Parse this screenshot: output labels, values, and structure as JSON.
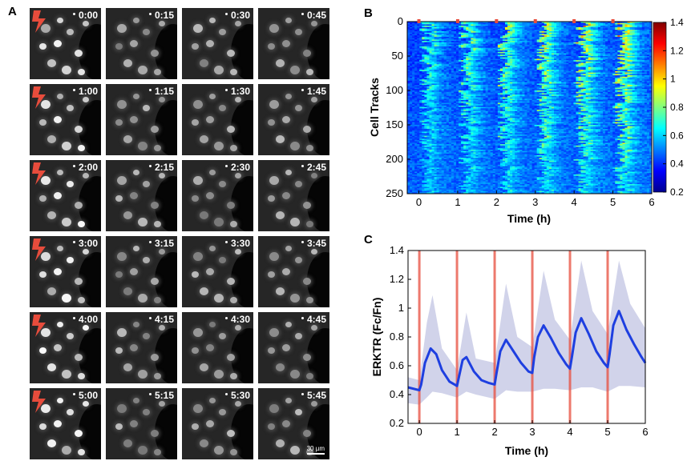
{
  "panels": {
    "a": "A",
    "b": "B",
    "c": "C"
  },
  "timepoints": [
    "0:00",
    "0:15",
    "0:30",
    "0:45",
    "1:00",
    "1:15",
    "1:30",
    "1:45",
    "2:00",
    "2:15",
    "2:30",
    "2:45",
    "3:00",
    "3:15",
    "3:30",
    "3:45",
    "4:00",
    "4:15",
    "4:30",
    "4:45",
    "5:00",
    "5:15",
    "5:30",
    "5:45"
  ],
  "scale_bar": "30 µm",
  "colors": {
    "stim": "#e74c3c",
    "line": "#1e3fe0",
    "band": "#c9cbe6"
  },
  "chart_data": [
    {
      "type": "heatmap",
      "xlabel": "Time (h)",
      "ylabel": "Cell Tracks",
      "xlim": [
        -0.3,
        6
      ],
      "ylim": [
        0,
        250
      ],
      "xticks": [
        "0",
        "1",
        "2",
        "3",
        "4",
        "5",
        "6"
      ],
      "yticks": [
        "0",
        "50",
        "100",
        "150",
        "200",
        "250"
      ],
      "colorbar": {
        "min": 0.2,
        "max": 1.4,
        "ticks": [
          "0.2",
          "0.4",
          "0.6",
          "0.8",
          "1",
          "1.2",
          "1.4"
        ],
        "colormap": "jet"
      },
      "stimulations_h": [
        0,
        1,
        2,
        3,
        4,
        5
      ]
    },
    {
      "type": "line",
      "xlabel": "Time (h)",
      "ylabel": "ERKTR (Fc/Fn)",
      "xlim": [
        -0.3,
        6
      ],
      "ylim": [
        0.2,
        1.4
      ],
      "xticks": [
        "0",
        "1",
        "2",
        "3",
        "4",
        "5",
        "6"
      ],
      "yticks": [
        "0.2",
        "0.4",
        "0.6",
        "0.8",
        "1",
        "1.2",
        "1.4"
      ],
      "stimulations_h": [
        0,
        1,
        2,
        3,
        4,
        5
      ],
      "series": [
        {
          "x": [
            -0.3,
            0,
            0.05,
            0.15,
            0.3,
            0.45,
            0.6,
            0.8,
            1.0,
            1.05,
            1.15,
            1.25,
            1.45,
            1.65,
            1.85,
            2.0,
            2.05,
            2.15,
            2.3,
            2.5,
            2.7,
            2.9,
            3.0,
            3.05,
            3.15,
            3.3,
            3.5,
            3.7,
            3.9,
            4.0,
            4.05,
            4.15,
            4.3,
            4.5,
            4.7,
            4.9,
            5.0,
            5.05,
            5.15,
            5.3,
            5.5,
            5.7,
            5.9,
            6.0
          ],
          "values": [
            0.45,
            0.43,
            0.47,
            0.62,
            0.72,
            0.68,
            0.57,
            0.49,
            0.46,
            0.52,
            0.64,
            0.66,
            0.56,
            0.5,
            0.48,
            0.47,
            0.55,
            0.7,
            0.78,
            0.7,
            0.62,
            0.56,
            0.55,
            0.66,
            0.8,
            0.88,
            0.79,
            0.69,
            0.61,
            0.58,
            0.66,
            0.83,
            0.93,
            0.82,
            0.7,
            0.62,
            0.59,
            0.68,
            0.88,
            0.98,
            0.85,
            0.75,
            0.66,
            0.62
          ]
        },
        {
          "x": [
            -0.3,
            0,
            0.2,
            0.35,
            0.6,
            1.0,
            1.25,
            1.5,
            2.0,
            2.3,
            2.6,
            3.0,
            3.3,
            3.6,
            4.0,
            4.3,
            4.6,
            5.0,
            5.3,
            5.6,
            6.0
          ],
          "upper": [
            0.52,
            0.5,
            0.9,
            1.09,
            0.72,
            0.57,
            0.97,
            0.65,
            0.62,
            1.17,
            0.8,
            0.73,
            1.26,
            0.92,
            0.78,
            1.33,
            0.98,
            0.82,
            1.33,
            1.03,
            0.86
          ],
          "lower": [
            0.34,
            0.33,
            0.38,
            0.42,
            0.41,
            0.38,
            0.42,
            0.4,
            0.37,
            0.43,
            0.42,
            0.42,
            0.44,
            0.44,
            0.43,
            0.45,
            0.45,
            0.42,
            0.46,
            0.46,
            0.45
          ]
        }
      ]
    }
  ]
}
